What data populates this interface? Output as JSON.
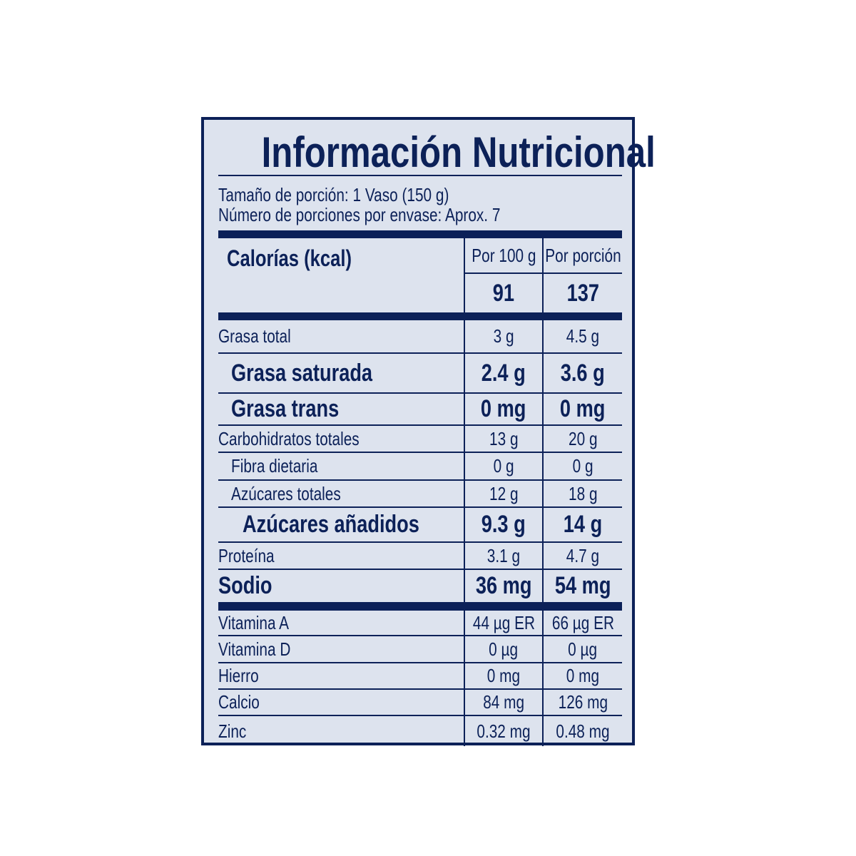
{
  "title": "Información Nutricional",
  "serving_size": "Tamaño de porción: 1 Vaso (150 g)",
  "servings_per_container": "Número de porciones por envase: Aprox. 7",
  "calories": {
    "label": "Calorías (kcal)",
    "col1_header": "Por 100 g",
    "col2_header": "Por porción",
    "per_100g": "91",
    "per_serving": "137"
  },
  "nutrients": [
    {
      "label": "Grasa total",
      "per_100g": "3 g",
      "per_serving": "4.5 g"
    },
    {
      "label": "Grasa saturada",
      "per_100g": "2.4 g",
      "per_serving": "3.6 g"
    },
    {
      "label": "Grasa trans",
      "per_100g": "0 mg",
      "per_serving": "0 mg"
    },
    {
      "label": "Carbohidratos totales",
      "per_100g": "13 g",
      "per_serving": "20 g"
    },
    {
      "label": "Fibra dietaria",
      "per_100g": "0 g",
      "per_serving": "0 g"
    },
    {
      "label": "Azúcares totales",
      "per_100g": "12 g",
      "per_serving": "18 g"
    },
    {
      "label": "Azúcares añadidos",
      "per_100g": "9.3 g",
      "per_serving": "14 g"
    },
    {
      "label": "Proteína",
      "per_100g": "3.1 g",
      "per_serving": "4.7 g"
    },
    {
      "label": "Sodio",
      "per_100g": "36 mg",
      "per_serving": "54 mg"
    }
  ],
  "micronutrients": [
    {
      "label": "Vitamina A",
      "per_100g": "44 µg ER",
      "per_serving": "66 µg ER"
    },
    {
      "label": "Vitamina D",
      "per_100g": "0 µg",
      "per_serving": "0 µg"
    },
    {
      "label": "Hierro",
      "per_100g": "0 mg",
      "per_serving": "0 mg"
    },
    {
      "label": "Calcio",
      "per_100g": "84 mg",
      "per_serving": "126 mg"
    },
    {
      "label": "Zinc",
      "per_100g": "0.32 mg",
      "per_serving": "0.48 mg"
    }
  ],
  "colors": {
    "ink": "#0c2158",
    "background": "#dde3ee"
  }
}
